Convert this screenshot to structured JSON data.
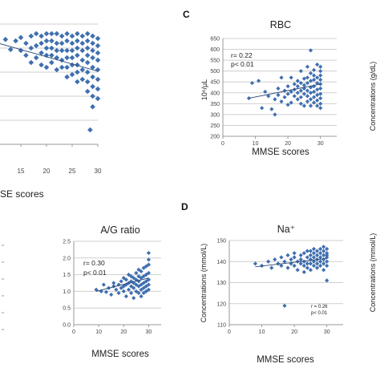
{
  "colors": {
    "marker": "#3f6faf",
    "trend": "#2f4f7a",
    "grid": "#cfcfcf"
  },
  "panels": {
    "c": {
      "label": "C"
    },
    "d": {
      "label": "D"
    }
  },
  "chart_data": [
    {
      "id": "left-top",
      "type": "scatter",
      "title": "",
      "xlabel": "MMSE scores",
      "ylabel": "",
      "xlim": [
        10,
        30
      ],
      "ylim": [
        3.0,
        5.5
      ],
      "xticks": [
        15,
        20,
        25,
        30
      ],
      "yticks": [],
      "grid": true,
      "annotations": [],
      "trend": [
        [
          10,
          5.12
        ],
        [
          30,
          4.52
        ]
      ],
      "points": [
        [
          10,
          5.05
        ],
        [
          12,
          5.18
        ],
        [
          13,
          4.97
        ],
        [
          14,
          5.15
        ],
        [
          15,
          5.22
        ],
        [
          15,
          4.95
        ],
        [
          16,
          5.1
        ],
        [
          16,
          4.85
        ],
        [
          17,
          5.25
        ],
        [
          17,
          5.0
        ],
        [
          17,
          4.7
        ],
        [
          18,
          5.3
        ],
        [
          18,
          5.05
        ],
        [
          18,
          4.8
        ],
        [
          19,
          5.25
        ],
        [
          19,
          5.1
        ],
        [
          19,
          4.9
        ],
        [
          19,
          4.65
        ],
        [
          20,
          5.3
        ],
        [
          20,
          5.15
        ],
        [
          20,
          5.0
        ],
        [
          20,
          4.85
        ],
        [
          20,
          4.6
        ],
        [
          21,
          5.3
        ],
        [
          21,
          5.15
        ],
        [
          21,
          5.0
        ],
        [
          21,
          4.85
        ],
        [
          21,
          4.7
        ],
        [
          22,
          5.3
        ],
        [
          22,
          5.1
        ],
        [
          22,
          4.95
        ],
        [
          22,
          4.8
        ],
        [
          22,
          4.55
        ],
        [
          23,
          5.25
        ],
        [
          23,
          5.1
        ],
        [
          23,
          4.95
        ],
        [
          23,
          4.75
        ],
        [
          23,
          4.6
        ],
        [
          24,
          5.3
        ],
        [
          24,
          5.15
        ],
        [
          24,
          4.95
        ],
        [
          24,
          4.8
        ],
        [
          24,
          4.6
        ],
        [
          24,
          4.4
        ],
        [
          25,
          5.25
        ],
        [
          25,
          5.1
        ],
        [
          25,
          4.95
        ],
        [
          25,
          4.8
        ],
        [
          25,
          4.65
        ],
        [
          25,
          4.45
        ],
        [
          26,
          5.3
        ],
        [
          26,
          5.15
        ],
        [
          26,
          5.0
        ],
        [
          26,
          4.85
        ],
        [
          26,
          4.65
        ],
        [
          26,
          4.5
        ],
        [
          26,
          4.3
        ],
        [
          27,
          5.25
        ],
        [
          27,
          5.1
        ],
        [
          27,
          4.95
        ],
        [
          27,
          4.75
        ],
        [
          27,
          4.55
        ],
        [
          27,
          4.35
        ],
        [
          28,
          5.3
        ],
        [
          28,
          5.15
        ],
        [
          28,
          5.0
        ],
        [
          28,
          4.85
        ],
        [
          28,
          4.7
        ],
        [
          28,
          4.5
        ],
        [
          28,
          4.3
        ],
        [
          28,
          4.1
        ],
        [
          29,
          5.25
        ],
        [
          29,
          5.1
        ],
        [
          29,
          4.95
        ],
        [
          29,
          4.8
        ],
        [
          29,
          4.6
        ],
        [
          29,
          4.4
        ],
        [
          29,
          4.2
        ],
        [
          29,
          4.0
        ],
        [
          29,
          3.78
        ],
        [
          30,
          5.2
        ],
        [
          30,
          5.05
        ],
        [
          30,
          4.9
        ],
        [
          30,
          4.75
        ],
        [
          30,
          4.55
        ],
        [
          30,
          4.35
        ],
        [
          30,
          4.15
        ],
        [
          30,
          3.95
        ],
        [
          28.5,
          3.3
        ]
      ]
    },
    {
      "id": "rbc",
      "type": "scatter",
      "title": "RBC",
      "xlabel": "MMSE scores",
      "ylabel": "10⁶/μL",
      "xlim": [
        0,
        35
      ],
      "ylim": [
        200,
        650
      ],
      "xticks": [
        0,
        10,
        20,
        30
      ],
      "yticks": [
        200,
        250,
        300,
        350,
        400,
        450,
        500,
        550,
        600,
        650
      ],
      "grid": true,
      "annotations": [
        "r= 0.22",
        "p< 0.01"
      ],
      "trend": [
        [
          8,
          375
        ],
        [
          30,
          440
        ]
      ],
      "points": [
        [
          8,
          375
        ],
        [
          9,
          445
        ],
        [
          11,
          455
        ],
        [
          12,
          330
        ],
        [
          13,
          405
        ],
        [
          14,
          385
        ],
        [
          15,
          325
        ],
        [
          16,
          370
        ],
        [
          16,
          300
        ],
        [
          17,
          390
        ],
        [
          17,
          420
        ],
        [
          18,
          360
        ],
        [
          18,
          470
        ],
        [
          19,
          410
        ],
        [
          19,
          380
        ],
        [
          20,
          345
        ],
        [
          20,
          430
        ],
        [
          20,
          395
        ],
        [
          21,
          470
        ],
        [
          21,
          405
        ],
        [
          21,
          355
        ],
        [
          22,
          440
        ],
        [
          22,
          385
        ],
        [
          22,
          415
        ],
        [
          23,
          370
        ],
        [
          23,
          455
        ],
        [
          23,
          400
        ],
        [
          23,
          430
        ],
        [
          24,
          410
        ],
        [
          24,
          380
        ],
        [
          24,
          350
        ],
        [
          24,
          500
        ],
        [
          24,
          445
        ],
        [
          25,
          420
        ],
        [
          25,
          395
        ],
        [
          25,
          465
        ],
        [
          25,
          340
        ],
        [
          25,
          435
        ],
        [
          26,
          470
        ],
        [
          26,
          410
        ],
        [
          26,
          385
        ],
        [
          26,
          445
        ],
        [
          26,
          360
        ],
        [
          26,
          520
        ],
        [
          27,
          425
        ],
        [
          27,
          455
        ],
        [
          27,
          400
        ],
        [
          27,
          370
        ],
        [
          27,
          490
        ],
        [
          27,
          340
        ],
        [
          28,
          430
        ],
        [
          28,
          460
        ],
        [
          28,
          405
        ],
        [
          28,
          380
        ],
        [
          28,
          505
        ],
        [
          28,
          355
        ],
        [
          28,
          480
        ],
        [
          29,
          445
        ],
        [
          29,
          415
        ],
        [
          29,
          390
        ],
        [
          29,
          470
        ],
        [
          29,
          365
        ],
        [
          29,
          530
        ],
        [
          29,
          340
        ],
        [
          30,
          440
        ],
        [
          30,
          420
        ],
        [
          30,
          395
        ],
        [
          30,
          460
        ],
        [
          30,
          480
        ],
        [
          30,
          375
        ],
        [
          30,
          500
        ],
        [
          30,
          350
        ],
        [
          30,
          520
        ],
        [
          30,
          330
        ],
        [
          27,
          595
        ]
      ]
    },
    {
      "id": "ag-ratio",
      "type": "scatter",
      "title": "A/G ratio",
      "xlabel": "MMSE scores",
      "ylabel": "",
      "xlim": [
        0,
        35
      ],
      "ylim": [
        0.0,
        2.5
      ],
      "xticks": [
        0,
        10,
        20,
        30
      ],
      "yticks": [
        0.0,
        0.5,
        1.0,
        1.5,
        2.0,
        2.5
      ],
      "grid": true,
      "annotations": [
        "r= 0.30",
        "p< 0.01"
      ],
      "trend": [
        [
          9,
          1.0
        ],
        [
          30,
          1.4
        ]
      ],
      "points": [
        [
          9,
          1.05
        ],
        [
          11,
          1.0
        ],
        [
          12,
          1.2
        ],
        [
          13,
          0.98
        ],
        [
          14,
          1.1
        ],
        [
          15,
          0.9
        ],
        [
          16,
          1.15
        ],
        [
          16,
          1.25
        ],
        [
          17,
          1.05
        ],
        [
          18,
          0.95
        ],
        [
          18,
          1.2
        ],
        [
          19,
          1.1
        ],
        [
          19,
          1.3
        ],
        [
          20,
          1.0
        ],
        [
          20,
          1.15
        ],
        [
          20,
          1.4
        ],
        [
          21,
          0.85
        ],
        [
          21,
          1.2
        ],
        [
          21,
          1.35
        ],
        [
          22,
          1.05
        ],
        [
          22,
          1.25
        ],
        [
          22,
          1.5
        ],
        [
          23,
          0.95
        ],
        [
          23,
          1.15
        ],
        [
          23,
          1.3
        ],
        [
          23,
          1.45
        ],
        [
          24,
          1.1
        ],
        [
          24,
          1.25
        ],
        [
          24,
          1.4
        ],
        [
          24,
          0.8
        ],
        [
          25,
          1.0
        ],
        [
          25,
          1.2
        ],
        [
          25,
          1.35
        ],
        [
          25,
          1.55
        ],
        [
          26,
          0.95
        ],
        [
          26,
          1.15
        ],
        [
          26,
          1.3
        ],
        [
          26,
          1.45
        ],
        [
          26,
          1.65
        ],
        [
          27,
          1.05
        ],
        [
          27,
          1.2
        ],
        [
          27,
          1.4
        ],
        [
          27,
          1.6
        ],
        [
          27,
          0.85
        ],
        [
          28,
          1.1
        ],
        [
          28,
          1.25
        ],
        [
          28,
          1.45
        ],
        [
          28,
          1.7
        ],
        [
          28,
          0.95
        ],
        [
          29,
          1.15
        ],
        [
          29,
          1.3
        ],
        [
          29,
          1.5
        ],
        [
          29,
          1.75
        ],
        [
          29,
          1.0
        ],
        [
          30,
          1.2
        ],
        [
          30,
          1.35
        ],
        [
          30,
          1.55
        ],
        [
          30,
          1.8
        ],
        [
          30,
          1.05
        ],
        [
          30,
          2.15
        ],
        [
          30,
          1.95
        ]
      ]
    },
    {
      "id": "na",
      "type": "scatter",
      "title": "Na⁺",
      "xlabel": "MMSE scores",
      "ylabel": "Concentrations (mmol/L)",
      "xlim": [
        0,
        35
      ],
      "ylim": [
        110,
        150
      ],
      "xticks": [
        0,
        10,
        20,
        30
      ],
      "yticks": [
        110,
        120,
        130,
        140,
        150
      ],
      "grid": true,
      "annotations": [
        "r = 0.26",
        "p< 0.01"
      ],
      "trend": [
        [
          8,
          137.5
        ],
        [
          30,
          141.5
        ]
      ],
      "points": [
        [
          8,
          139
        ],
        [
          10,
          138
        ],
        [
          12,
          140
        ],
        [
          13,
          137
        ],
        [
          14,
          141
        ],
        [
          15,
          139
        ],
        [
          16,
          142
        ],
        [
          16,
          138
        ],
        [
          17,
          140
        ],
        [
          18,
          143
        ],
        [
          18,
          137
        ],
        [
          19,
          141
        ],
        [
          19,
          139
        ],
        [
          20,
          142
        ],
        [
          20,
          138
        ],
        [
          20,
          144
        ],
        [
          21,
          140
        ],
        [
          21,
          136
        ],
        [
          22,
          143
        ],
        [
          22,
          141
        ],
        [
          22,
          139
        ],
        [
          23,
          144
        ],
        [
          23,
          140
        ],
        [
          23,
          138
        ],
        [
          23,
          135
        ],
        [
          24,
          142
        ],
        [
          24,
          145
        ],
        [
          24,
          139
        ],
        [
          24,
          137
        ],
        [
          25,
          143
        ],
        [
          25,
          141
        ],
        [
          25,
          139
        ],
        [
          25,
          145
        ],
        [
          25,
          136
        ],
        [
          26,
          142
        ],
        [
          26,
          144
        ],
        [
          26,
          140
        ],
        [
          26,
          138
        ],
        [
          26,
          146
        ],
        [
          27,
          143
        ],
        [
          27,
          141
        ],
        [
          27,
          145
        ],
        [
          27,
          139
        ],
        [
          27,
          137
        ],
        [
          28,
          142
        ],
        [
          28,
          144
        ],
        [
          28,
          140
        ],
        [
          28,
          146
        ],
        [
          28,
          138
        ],
        [
          29,
          143
        ],
        [
          29,
          141
        ],
        [
          29,
          145
        ],
        [
          29,
          139
        ],
        [
          29,
          147
        ],
        [
          29,
          136
        ],
        [
          30,
          142
        ],
        [
          30,
          144
        ],
        [
          30,
          140
        ],
        [
          30,
          146
        ],
        [
          30,
          138
        ],
        [
          30,
          143
        ],
        [
          30,
          131
        ],
        [
          17,
          119
        ]
      ]
    },
    {
      "id": "right-top-partial",
      "type": "scatter",
      "title": "",
      "xlabel": "",
      "ylabel": "Concentrations (g/dL)",
      "grid": false,
      "points": []
    },
    {
      "id": "right-bottom-partial",
      "type": "scatter",
      "title": "",
      "xlabel": "",
      "ylabel": "Concentrations (mmol/L)",
      "grid": false,
      "points": []
    }
  ]
}
